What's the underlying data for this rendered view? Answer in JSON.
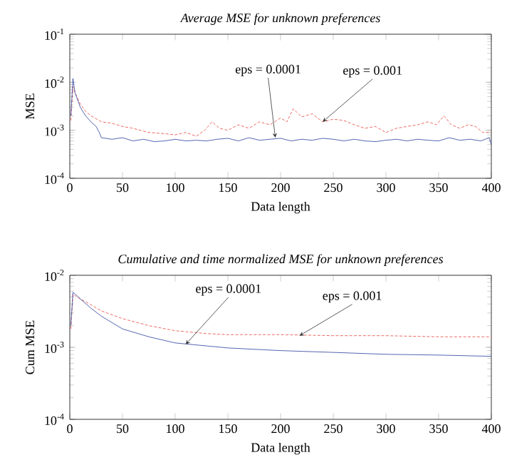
{
  "chart_data": [
    {
      "type": "line",
      "title": "Average MSE for unknown preferences",
      "xlabel": "Data length",
      "ylabel": "MSE",
      "log": "y",
      "xlim": [
        0,
        400
      ],
      "xticks": [
        0,
        50,
        100,
        150,
        200,
        250,
        300,
        350,
        400
      ],
      "ylim": [
        0.0001,
        0.1
      ],
      "yticks": [
        {
          "value": 0.0001,
          "label": "10$^{-4}$"
        },
        {
          "value": 0.001,
          "label": "10$^{-3}$"
        },
        {
          "value": 0.01,
          "label": "10$^{-2}$"
        },
        {
          "value": 0.1,
          "label": "10$^{-1}$"
        }
      ],
      "grid": false,
      "marker": "none",
      "series": [
        {
          "color": "#e8443a",
          "line_style": "dashed",
          "x": [
            1,
            3,
            5,
            10,
            15,
            20,
            30,
            40,
            50,
            60,
            75,
            90,
            100,
            110,
            120,
            128,
            135,
            142,
            150,
            160,
            170,
            180,
            190,
            200,
            206,
            212,
            220,
            230,
            240,
            250,
            260,
            270,
            280,
            290,
            300,
            310,
            320,
            330,
            340,
            348,
            355,
            362,
            370,
            378,
            385,
            392,
            400
          ],
          "values": [
            0.0016,
            0.008,
            0.006,
            0.0035,
            0.0025,
            0.002,
            0.0015,
            0.0014,
            0.0012,
            0.0011,
            0.0009,
            0.00085,
            0.0008,
            0.0009,
            0.00075,
            0.001,
            0.0015,
            0.0011,
            0.001,
            0.0013,
            0.0011,
            0.0015,
            0.0013,
            0.0018,
            0.0015,
            0.0028,
            0.0019,
            0.0022,
            0.0015,
            0.0017,
            0.0016,
            0.0013,
            0.0011,
            0.0012,
            0.0009,
            0.0011,
            0.0012,
            0.0013,
            0.0015,
            0.0013,
            0.002,
            0.0013,
            0.0011,
            0.0013,
            0.0012,
            0.0009,
            0.0009
          ]
        },
        {
          "color": "#2b3f9e",
          "line_style": "solid",
          "x": [
            1,
            3,
            5,
            8,
            10,
            15,
            20,
            25,
            28,
            30,
            40,
            50,
            60,
            70,
            80,
            90,
            100,
            110,
            120,
            130,
            140,
            150,
            160,
            170,
            180,
            190,
            200,
            210,
            220,
            230,
            240,
            250,
            260,
            270,
            280,
            290,
            300,
            310,
            320,
            330,
            340,
            350,
            360,
            370,
            380,
            390,
            398,
            400
          ],
          "values": [
            0.002,
            0.012,
            0.006,
            0.004,
            0.003,
            0.002,
            0.0015,
            0.0012,
            0.0009,
            0.0007,
            0.00065,
            0.0007,
            0.0006,
            0.00065,
            0.00058,
            0.0006,
            0.00065,
            0.0006,
            0.00062,
            0.0006,
            0.00065,
            0.00068,
            0.0006,
            0.0007,
            0.00062,
            0.00065,
            0.00068,
            0.0006,
            0.00065,
            0.00062,
            0.00068,
            0.00065,
            0.0006,
            0.00065,
            0.0006,
            0.00058,
            0.00062,
            0.00065,
            0.0006,
            0.00065,
            0.00062,
            0.0006,
            0.0007,
            0.00062,
            0.00065,
            0.0006,
            0.0007,
            0.0005
          ]
        }
      ],
      "annotations": [
        {
          "text": "eps = 0.0001",
          "x": 195,
          "y": 0.0007
        },
        {
          "text": "eps = 0.001",
          "x": 240,
          "y": 0.0015
        }
      ]
    },
    {
      "type": "line",
      "title": "Cumulative and time normalized MSE for unknown preferences",
      "xlabel": "Data length",
      "ylabel": "Cum MSE",
      "log": "y",
      "xlim": [
        0,
        400
      ],
      "xticks": [
        0,
        50,
        100,
        150,
        200,
        250,
        300,
        350,
        400
      ],
      "ylim": [
        0.0001,
        0.01
      ],
      "yticks": [
        {
          "value": 0.0001,
          "label": "10$^{-4}$"
        },
        {
          "value": 0.001,
          "label": "10$^{-3}$"
        },
        {
          "value": 0.01,
          "label": "10$^{-2}$"
        }
      ],
      "grid": false,
      "marker": "none",
      "series": [
        {
          "color": "#e8443a",
          "line_style": "dashed",
          "x": [
            1,
            3,
            5,
            10,
            20,
            30,
            50,
            75,
            100,
            130,
            150,
            200,
            250,
            300,
            350,
            400
          ],
          "values": [
            0.0018,
            0.0055,
            0.0052,
            0.0047,
            0.0039,
            0.0032,
            0.0025,
            0.002,
            0.0017,
            0.00155,
            0.0015,
            0.0015,
            0.00145,
            0.00145,
            0.0014,
            0.0014
          ]
        },
        {
          "color": "#2b3f9e",
          "line_style": "solid",
          "x": [
            1,
            3,
            5,
            10,
            20,
            30,
            50,
            75,
            100,
            150,
            200,
            250,
            300,
            350,
            400
          ],
          "values": [
            0.002,
            0.0058,
            0.0055,
            0.0047,
            0.0035,
            0.0027,
            0.0018,
            0.0014,
            0.00115,
            0.00098,
            0.0009,
            0.00085,
            0.0008,
            0.00078,
            0.00075
          ]
        }
      ],
      "annotations": [
        {
          "text": "eps = 0.0001",
          "x": 110,
          "y": 0.0011
        },
        {
          "text": "eps = 0.001",
          "x": 218,
          "y": 0.00145
        }
      ]
    }
  ]
}
